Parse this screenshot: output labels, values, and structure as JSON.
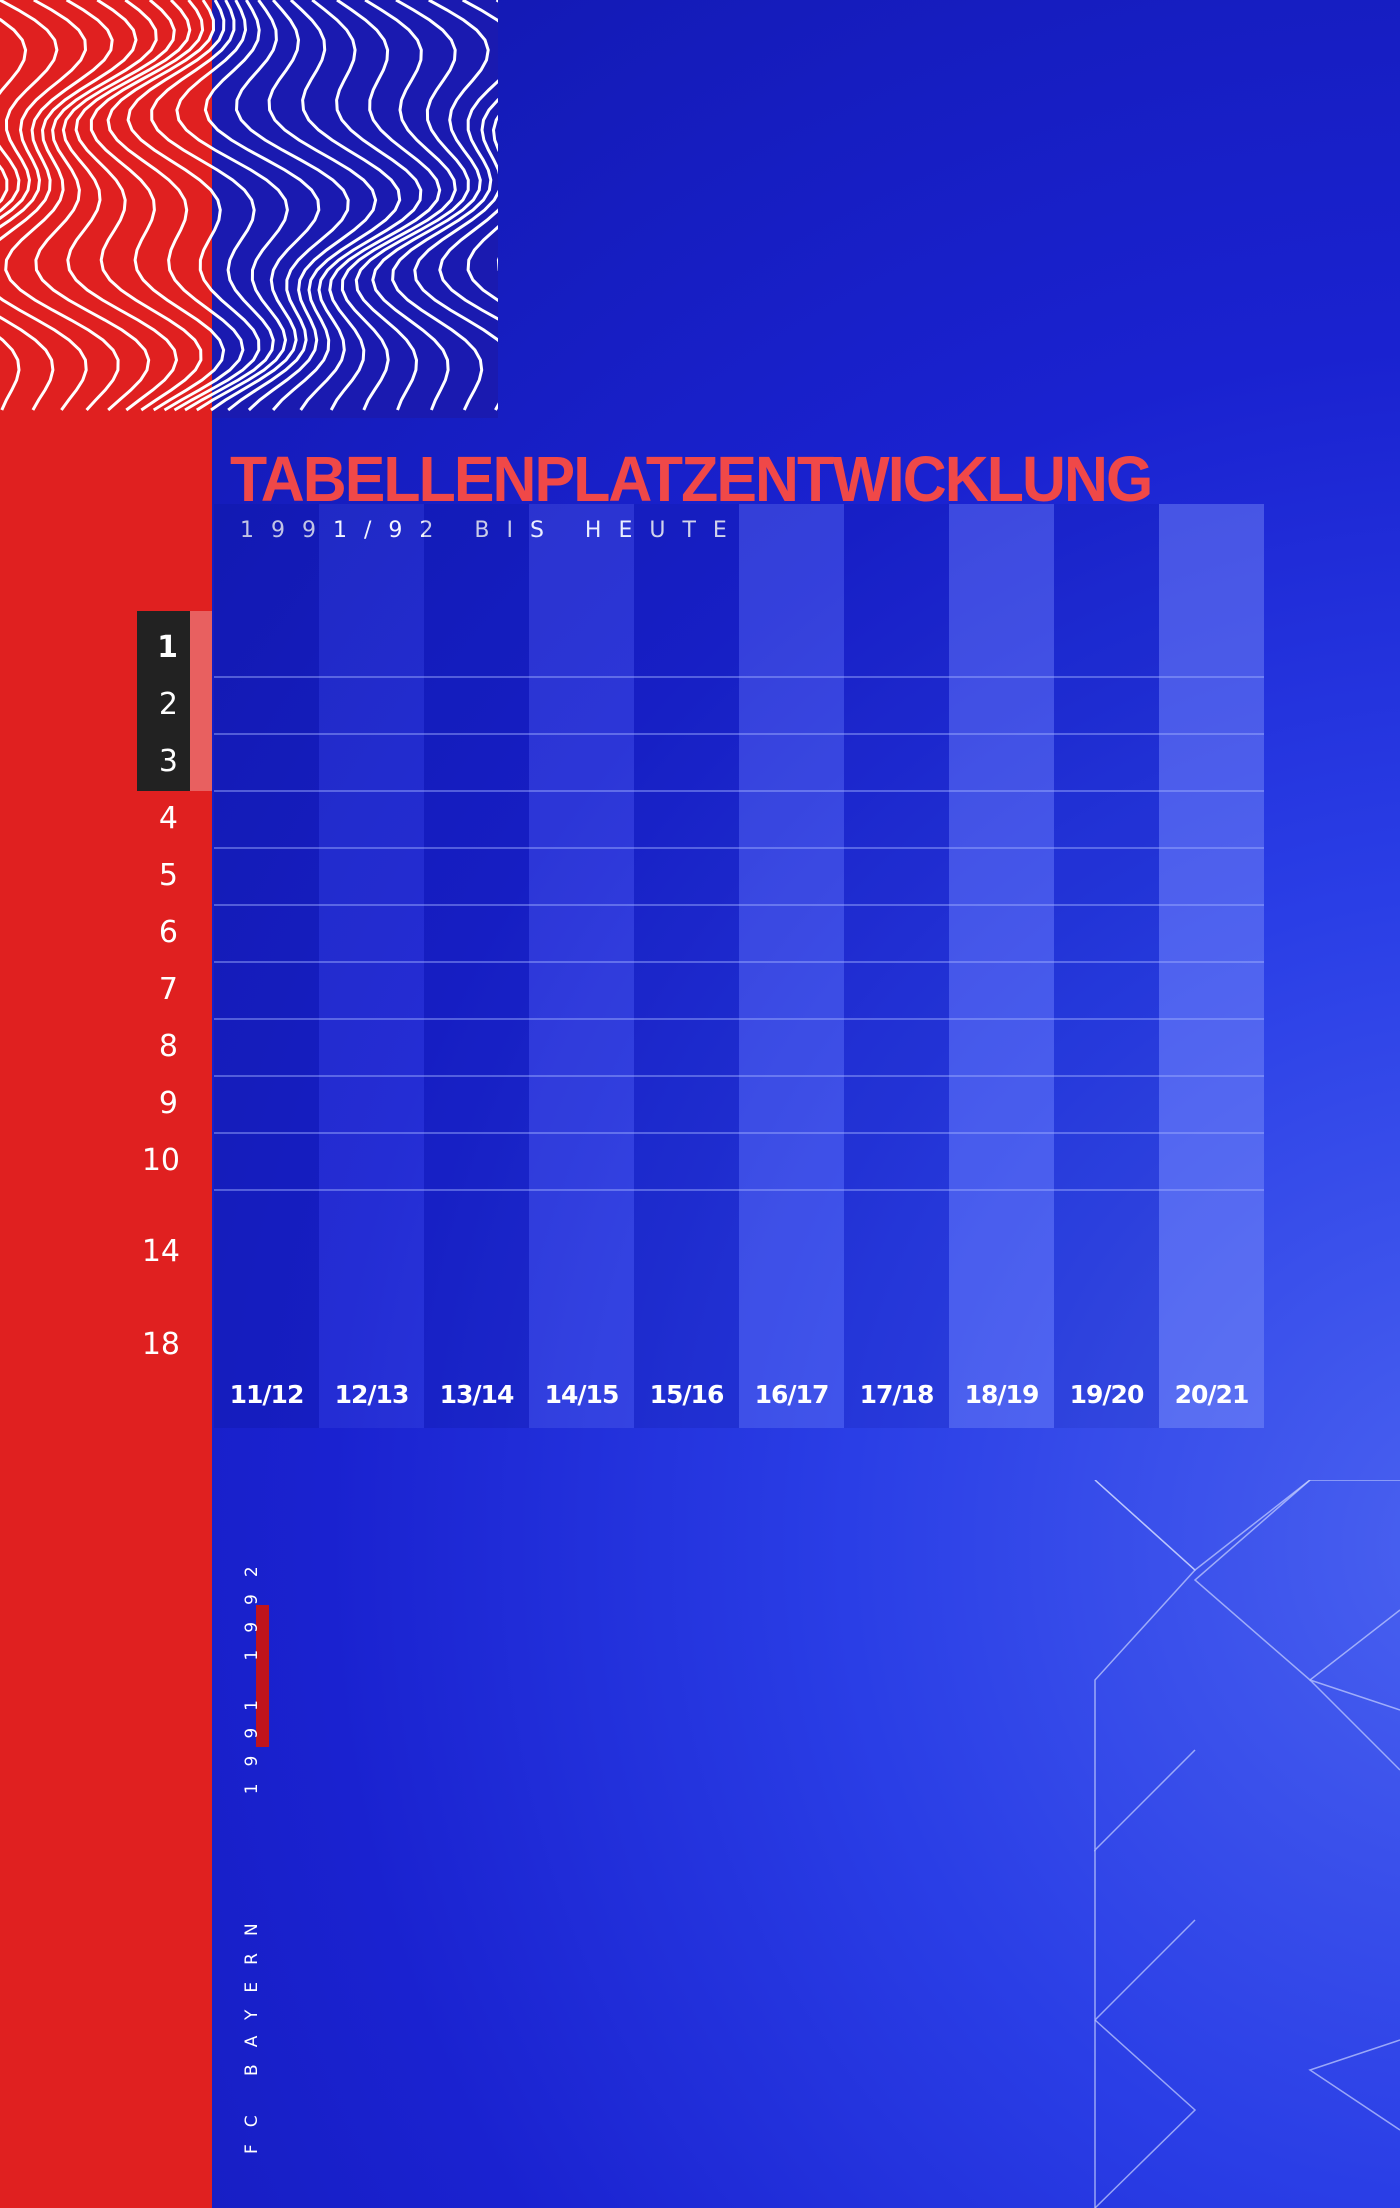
{
  "header": {
    "title": "TABELLENPLATZENTWICKLUNG",
    "subtitle": "1991/92 BIS HEUTE"
  },
  "footer": {
    "vertical_text_club": "FC BAYERN",
    "vertical_text_year": "1991 1992"
  },
  "colors": {
    "red": "#e02020",
    "title_red": "#f04848",
    "blue_dark": "#1016a8",
    "blue_light": "#4a62f0",
    "label_box": "#222222"
  },
  "chart_data": {
    "type": "table",
    "title": "TABELLENPLATZENTWICKLUNG",
    "subtitle": "1991/92 BIS HEUTE",
    "categories": [
      "11/12",
      "12/13",
      "13/14",
      "14/15",
      "15/16",
      "16/17",
      "17/18",
      "18/19",
      "19/20",
      "20/21"
    ],
    "y_tick_labels": [
      "1",
      "2",
      "3",
      "4",
      "5",
      "6",
      "7",
      "8",
      "9",
      "10",
      "14",
      "18"
    ],
    "highlighted_ranks": [
      "1",
      "2",
      "3"
    ],
    "y_inverted": true,
    "grid": true,
    "series": []
  }
}
